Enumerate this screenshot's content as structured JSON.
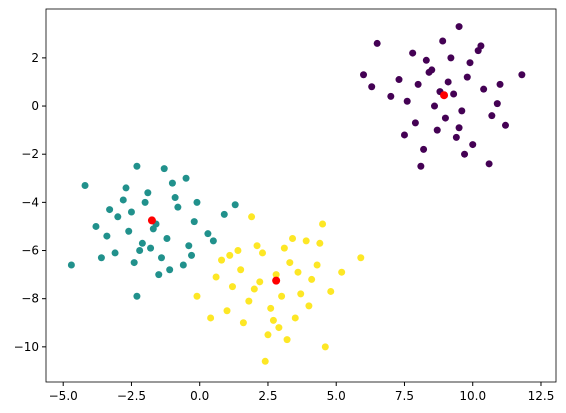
{
  "chart_data": {
    "type": "scatter",
    "xlim": [
      -5.63,
      13.05
    ],
    "ylim": [
      -11.46,
      4.03
    ],
    "xticks": [
      {
        "value": -5,
        "label": "−5.0"
      },
      {
        "value": -2.5,
        "label": "−2.5"
      },
      {
        "value": 0,
        "label": "0.0"
      },
      2.5,
      {
        "value": 5,
        "label": "5.0"
      },
      7.5,
      {
        "value": 10,
        "label": "10.0"
      },
      12.5
    ],
    "yticks": [
      2,
      0,
      {
        "value": -2,
        "label": "−2"
      },
      {
        "value": -4,
        "label": "−4"
      },
      {
        "value": -6,
        "label": "−6"
      },
      {
        "value": -8,
        "label": "−8"
      },
      {
        "value": -10,
        "label": "−10"
      }
    ],
    "series": [
      {
        "color": "#440154",
        "x": [
          9.5,
          6.5,
          6.0,
          11.8,
          10.6,
          8.1,
          6.3,
          10.2,
          8.5,
          9.2,
          9.8,
          8.0,
          7.6,
          10.4,
          9.0,
          8.7,
          9.4,
          7.9,
          10.9,
          8.3,
          9.6,
          7.3,
          10.0,
          8.9,
          9.3,
          11.2,
          7.0,
          8.6,
          9.9,
          10.7,
          7.5,
          8.2,
          9.1,
          10.3,
          9.7,
          8.4,
          11.0,
          7.8,
          9.5,
          8.8
        ],
        "y": [
          3.3,
          2.6,
          1.3,
          1.3,
          -2.4,
          -2.5,
          0.8,
          2.3,
          1.5,
          2.0,
          1.2,
          0.9,
          0.2,
          0.7,
          -0.5,
          -1.0,
          -1.3,
          -0.7,
          0.1,
          1.9,
          -0.2,
          1.1,
          -1.6,
          2.7,
          0.5,
          -0.8,
          0.4,
          0.0,
          1.8,
          -0.4,
          -1.2,
          -1.8,
          1.0,
          2.5,
          -2.0,
          1.4,
          0.9,
          2.2,
          -0.9,
          0.6
        ]
      },
      {
        "color": "#21918c",
        "x": [
          -4.7,
          -4.2,
          -3.6,
          -2.3,
          1.3,
          -2.3,
          0.9,
          -1.6,
          -2.0,
          -1.2,
          -0.8,
          -2.6,
          -3.0,
          -0.4,
          -1.9,
          -1.4,
          -2.8,
          -0.2,
          -1.0,
          -3.4,
          -2.2,
          -0.6,
          -1.7,
          -2.5,
          0.3,
          -1.3,
          -3.1,
          -0.9,
          -2.1,
          -1.5,
          -3.8,
          -0.1,
          -1.1,
          -2.7,
          -0.5,
          -1.8,
          0.5,
          -3.3,
          -2.4,
          -0.3
        ],
        "y": [
          -6.6,
          -3.3,
          -6.3,
          -2.5,
          -4.1,
          -7.9,
          -4.5,
          -4.9,
          -4.0,
          -5.5,
          -4.2,
          -5.2,
          -4.6,
          -5.8,
          -3.6,
          -6.3,
          -3.9,
          -4.8,
          -3.2,
          -5.4,
          -6.0,
          -6.6,
          -5.1,
          -4.4,
          -5.3,
          -2.6,
          -6.1,
          -3.8,
          -5.7,
          -7.0,
          -5.0,
          -4.0,
          -6.8,
          -3.4,
          -3.0,
          -5.9,
          -5.6,
          -4.3,
          -6.5,
          -6.2
        ]
      },
      {
        "color": "#fde725",
        "x": [
          2.4,
          5.9,
          -0.1,
          4.6,
          1.9,
          4.5,
          0.4,
          2.8,
          3.3,
          2.0,
          3.7,
          1.5,
          2.6,
          3.1,
          4.1,
          1.2,
          2.3,
          3.5,
          1.8,
          4.3,
          0.8,
          2.9,
          3.9,
          1.0,
          2.1,
          3.0,
          4.8,
          1.6,
          2.5,
          3.6,
          0.6,
          4.0,
          2.2,
          3.4,
          1.4,
          2.7,
          5.2,
          1.1,
          3.2,
          4.4
        ],
        "y": [
          -10.6,
          -6.3,
          -7.9,
          -10.0,
          -4.6,
          -4.9,
          -8.8,
          -7.0,
          -6.5,
          -7.6,
          -7.8,
          -6.8,
          -8.4,
          -5.9,
          -7.2,
          -7.5,
          -6.1,
          -8.8,
          -8.1,
          -6.6,
          -6.4,
          -9.2,
          -5.6,
          -8.5,
          -5.8,
          -7.9,
          -7.7,
          -9.0,
          -9.5,
          -6.9,
          -7.1,
          -8.3,
          -7.3,
          -5.5,
          -6.0,
          -8.9,
          -6.9,
          -6.2,
          -9.7,
          -5.7
        ]
      },
      {
        "color": "#ff0000",
        "x": [
          8.95,
          -1.75,
          2.8
        ],
        "y": [
          0.45,
          -4.75,
          -7.25
        ]
      }
    ]
  }
}
